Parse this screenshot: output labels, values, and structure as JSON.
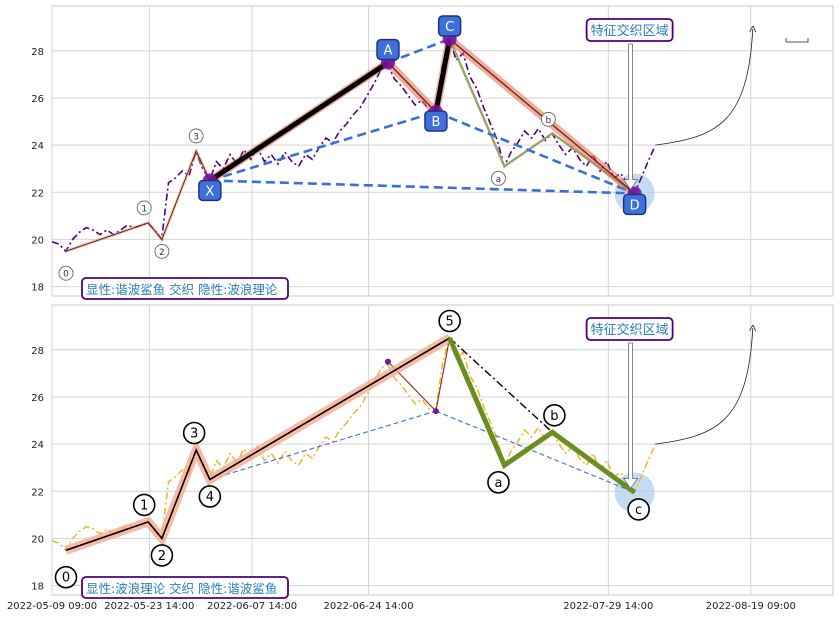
{
  "chart_data": [
    {
      "type": "line",
      "title": "",
      "xlabel": "",
      "ylabel": "",
      "xlim": [
        "2022-05-09 09:00",
        "2022-08-31 09:00"
      ],
      "ylim": [
        17.6,
        29.9
      ],
      "grid": true,
      "yticks": [
        18,
        20,
        22,
        24,
        26,
        28
      ],
      "yticklabels": [
        "18",
        "20",
        "22",
        "24",
        "26",
        "28"
      ],
      "colors": {
        "price": "#4b0082",
        "harmonic": "#000000",
        "harmonic_glow": "#e8674a",
        "xabcd_dash": "#3a6fd8",
        "label_box": "#3f6fd8",
        "wave_abc": "#9aa36a",
        "region_fill": "#a9cdec",
        "caption_border": "#4b0082",
        "caption_text": "#2a7fb8"
      },
      "legend_text": "显性:谐波鲨鱼 交织 隐性:波浪理论",
      "region_label": "特征交织区域",
      "harmonic_points": [
        {
          "label": "X",
          "date": "2022-06-01 10:00",
          "value": 22.5
        },
        {
          "label": "A",
          "date": "2022-06-27 10:00",
          "value": 27.5
        },
        {
          "label": "B",
          "date": "2022-07-04 10:00",
          "value": 25.4
        },
        {
          "label": "C",
          "date": "2022-07-06 10:00",
          "value": 28.5
        },
        {
          "label": "D",
          "date": "2022-08-02 10:00",
          "value": 21.95
        }
      ],
      "wave_points": [
        {
          "label": "0",
          "date": "2022-05-11 10:00",
          "value": 19.5
        },
        {
          "label": "1",
          "date": "2022-05-23 10:00",
          "value": 20.7
        },
        {
          "label": "2",
          "date": "2022-05-25 10:00",
          "value": 20.0
        },
        {
          "label": "3",
          "date": "2022-05-30 10:00",
          "value": 23.75
        },
        {
          "label": "4",
          "date": "2022-06-01 10:00",
          "value": 22.5
        },
        {
          "label": "5",
          "date": "2022-07-06 10:00",
          "value": 28.5
        },
        {
          "label": "a",
          "date": "2022-07-14 10:00",
          "value": 23.1
        },
        {
          "label": "b",
          "date": "2022-07-21 10:00",
          "value": 24.5
        },
        {
          "label": "c",
          "date": "2022-08-02 10:00",
          "value": 21.95
        }
      ],
      "projection": [
        {
          "date": "2022-08-05 10:00",
          "value": 24.0
        },
        {
          "date": "2022-08-19 09:00",
          "value": 28.5
        }
      ],
      "series": [
        {
          "values": [
            [
              "2022-05-09 09:00",
              19.9
            ],
            [
              "2022-05-10 09:00",
              19.8
            ],
            [
              "2022-05-11 09:00",
              19.5
            ],
            [
              "2022-05-12 09:00",
              20.0
            ],
            [
              "2022-05-13 09:00",
              20.3
            ],
            [
              "2022-05-14 09:00",
              20.5
            ],
            [
              "2022-05-15 09:00",
              20.4
            ],
            [
              "2022-05-16 09:00",
              20.2
            ],
            [
              "2022-05-17 09:00",
              20.4
            ],
            [
              "2022-05-18 09:00",
              20.2
            ],
            [
              "2022-05-19 09:00",
              20.4
            ],
            [
              "2022-05-20 09:00",
              20.6
            ],
            [
              "2022-05-21 09:00",
              20.5
            ],
            [
              "2022-05-22 09:00",
              20.6
            ],
            [
              "2022-05-23 09:00",
              20.7
            ],
            [
              "2022-05-24 09:00",
              20.4
            ],
            [
              "2022-05-25 09:00",
              20.0
            ],
            [
              "2022-05-26 09:00",
              22.4
            ],
            [
              "2022-05-27 09:00",
              22.6
            ],
            [
              "2022-05-28 09:00",
              22.9
            ],
            [
              "2022-05-29 09:00",
              22.7
            ],
            [
              "2022-05-30 09:00",
              23.7
            ],
            [
              "2022-05-31 09:00",
              23.0
            ],
            [
              "2022-06-01 09:00",
              22.5
            ],
            [
              "2022-06-02 09:00",
              23.3
            ],
            [
              "2022-06-03 09:00",
              23.0
            ],
            [
              "2022-06-04 09:00",
              23.6
            ],
            [
              "2022-06-05 09:00",
              23.2
            ],
            [
              "2022-06-06 09:00",
              23.8
            ],
            [
              "2022-06-07 09:00",
              23.4
            ],
            [
              "2022-06-08 09:00",
              23.9
            ],
            [
              "2022-06-09 09:00",
              23.3
            ],
            [
              "2022-06-10 09:00",
              23.6
            ],
            [
              "2022-06-11 09:00",
              23.2
            ],
            [
              "2022-06-12 09:00",
              23.7
            ],
            [
              "2022-06-13 09:00",
              23.3
            ],
            [
              "2022-06-14 09:00",
              23.1
            ],
            [
              "2022-06-15 09:00",
              23.6
            ],
            [
              "2022-06-16 09:00",
              23.4
            ],
            [
              "2022-06-17 09:00",
              23.9
            ],
            [
              "2022-06-18 09:00",
              24.3
            ],
            [
              "2022-06-19 09:00",
              24.1
            ],
            [
              "2022-06-20 09:00",
              24.6
            ],
            [
              "2022-06-21 09:00",
              24.9
            ],
            [
              "2022-06-22 09:00",
              25.3
            ],
            [
              "2022-06-23 09:00",
              25.6
            ],
            [
              "2022-06-24 09:00",
              26.1
            ],
            [
              "2022-06-25 09:00",
              26.6
            ],
            [
              "2022-06-26 09:00",
              27.2
            ],
            [
              "2022-06-27 09:00",
              27.4
            ],
            [
              "2022-06-28 09:00",
              26.8
            ],
            [
              "2022-06-29 09:00",
              26.5
            ],
            [
              "2022-06-30 09:00",
              26.1
            ],
            [
              "2022-07-01 09:00",
              25.7
            ],
            [
              "2022-07-02 09:00",
              25.9
            ],
            [
              "2022-07-03 09:00",
              25.5
            ],
            [
              "2022-07-04 09:00",
              25.4
            ],
            [
              "2022-07-05 09:00",
              27.4
            ],
            [
              "2022-07-06 09:00",
              28.5
            ],
            [
              "2022-07-07 09:00",
              27.6
            ],
            [
              "2022-07-08 09:00",
              27.9
            ],
            [
              "2022-07-09 09:00",
              26.9
            ],
            [
              "2022-07-10 09:00",
              26.4
            ],
            [
              "2022-07-11 09:00",
              25.6
            ],
            [
              "2022-07-12 09:00",
              24.9
            ],
            [
              "2022-07-13 09:00",
              24.2
            ],
            [
              "2022-07-14 09:00",
              23.1
            ],
            [
              "2022-07-15 09:00",
              23.7
            ],
            [
              "2022-07-16 09:00",
              24.1
            ],
            [
              "2022-07-17 09:00",
              24.6
            ],
            [
              "2022-07-18 09:00",
              24.3
            ],
            [
              "2022-07-19 09:00",
              24.7
            ],
            [
              "2022-07-20 09:00",
              24.2
            ],
            [
              "2022-07-21 09:00",
              24.5
            ],
            [
              "2022-07-22 09:00",
              24.0
            ],
            [
              "2022-07-23 09:00",
              23.6
            ],
            [
              "2022-07-24 09:00",
              23.9
            ],
            [
              "2022-07-25 09:00",
              23.4
            ],
            [
              "2022-07-26 09:00",
              23.1
            ],
            [
              "2022-07-27 09:00",
              23.6
            ],
            [
              "2022-07-28 09:00",
              22.9
            ],
            [
              "2022-07-29 09:00",
              23.3
            ],
            [
              "2022-07-30 09:00",
              22.6
            ],
            [
              "2022-07-31 09:00",
              22.8
            ],
            [
              "2022-08-01 09:00",
              22.4
            ],
            [
              "2022-08-02 09:00",
              21.95
            ],
            [
              "2022-08-03 09:00",
              22.6
            ],
            [
              "2022-08-04 09:00",
              23.3
            ],
            [
              "2022-08-05 09:00",
              23.95
            ]
          ]
        }
      ]
    },
    {
      "type": "line",
      "title": "",
      "xlabel": "",
      "ylabel": "",
      "xlim": [
        "2022-05-09 09:00",
        "2022-08-31 09:00"
      ],
      "ylim": [
        17.6,
        29.9
      ],
      "grid": true,
      "yticks": [
        18,
        20,
        22,
        24,
        26,
        28
      ],
      "yticklabels": [
        "18",
        "20",
        "22",
        "24",
        "26",
        "28"
      ],
      "xticks": [
        "2022-05-09 09:00",
        "2022-05-23 14:00",
        "2022-06-07 14:00",
        "2022-06-24 14:00",
        "2022-07-29 14:00",
        "2022-08-19 09:00"
      ],
      "colors": {
        "price": "#f0b429",
        "wave": "#000000",
        "wave_glow": "#f4a98e",
        "abc": "#6b8e23",
        "harmonic_thin": "#8b2a1a",
        "xabcd_dash": "#3a6fd8",
        "region_fill": "#a9cdec",
        "caption_border": "#4b0082",
        "caption_text": "#2a7fb8"
      },
      "legend_text": "显性:波浪理论 交织 隐性:谐波鲨鱼",
      "region_label": "特征交织区域"
    }
  ]
}
